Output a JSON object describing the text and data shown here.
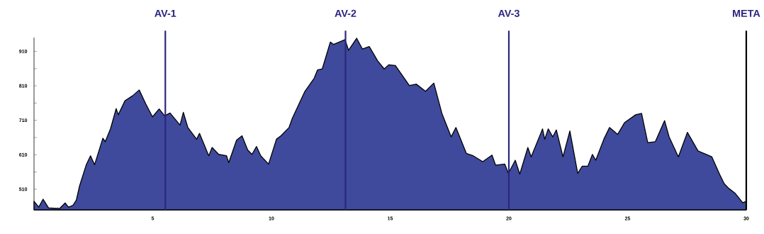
{
  "chart_data": {
    "type": "area",
    "color": "#3f4a9c",
    "x": [
      0,
      0.2,
      0.38,
      0.61,
      1.08,
      1.31,
      1.45,
      1.64,
      1.78,
      1.92,
      2.2,
      2.38,
      2.55,
      2.9,
      3.0,
      3.22,
      3.46,
      3.55,
      3.83,
      4.15,
      4.43,
      4.71,
      4.99,
      5.27,
      5.5,
      5.73,
      6.15,
      6.29,
      6.48,
      6.85,
      6.97,
      7.36,
      7.5,
      7.78,
      8.11,
      8.2,
      8.53,
      8.76,
      9.0,
      9.18,
      9.37,
      9.55,
      9.88,
      10.21,
      10.4,
      10.74,
      10.88,
      11.41,
      11.8,
      11.94,
      12.14,
      12.48,
      12.62,
      13.1,
      13.25,
      13.59,
      13.83,
      14.12,
      14.47,
      14.75,
      14.94,
      15.22,
      15.81,
      16.1,
      16.49,
      16.84,
      17.18,
      17.57,
      17.77,
      18.21,
      18.5,
      18.9,
      19.29,
      19.44,
      19.83,
      19.98,
      20.27,
      20.46,
      20.8,
      20.94,
      21.42,
      21.51,
      21.66,
      21.85,
      22.0,
      22.28,
      22.57,
      22.9,
      23.09,
      23.33,
      23.52,
      23.66,
      24.0,
      24.24,
      24.58,
      24.87,
      25.34,
      25.59,
      25.85,
      26.17,
      26.56,
      26.75,
      27.14,
      27.52,
      27.97,
      28.55,
      28.88,
      29.07,
      29.27,
      29.52,
      29.85,
      30
    ],
    "values": [
      475,
      458,
      481,
      456,
      454,
      470,
      458,
      463,
      478,
      520,
      581,
      607,
      581,
      658,
      648,
      685,
      744,
      726,
      767,
      781,
      798,
      757,
      720,
      743,
      723,
      731,
      696,
      733,
      689,
      655,
      672,
      607,
      631,
      611,
      607,
      587,
      652,
      665,
      624,
      611,
      634,
      607,
      583,
      655,
      665,
      689,
      716,
      794,
      832,
      856,
      859,
      937,
      930,
      944,
      913,
      948,
      917,
      924,
      883,
      859,
      871,
      869,
      811,
      815,
      794,
      818,
      730,
      662,
      689,
      614,
      607,
      590,
      609,
      580,
      583,
      556,
      594,
      554,
      631,
      604,
      685,
      655,
      685,
      662,
      682,
      604,
      679,
      556,
      577,
      577,
      611,
      594,
      655,
      689,
      669,
      703,
      726,
      730,
      645,
      648,
      709,
      662,
      604,
      675,
      621,
      604,
      553,
      526,
      512,
      499,
      471,
      475
    ],
    "xlim": [
      0,
      30
    ],
    "ylim": [
      450,
      950
    ],
    "xticks": [
      {
        "value": 1,
        "label": null
      },
      {
        "value": 2,
        "label": null
      },
      {
        "value": 3,
        "label": null
      },
      {
        "value": 4,
        "label": null
      },
      5,
      {
        "value": 6,
        "label": null
      },
      {
        "value": 7,
        "label": null
      },
      {
        "value": 8,
        "label": null
      },
      {
        "value": 9,
        "label": null
      },
      10,
      {
        "value": 11,
        "label": null
      },
      {
        "value": 12,
        "label": null
      },
      {
        "value": 13,
        "label": null
      },
      {
        "value": 14,
        "label": null
      },
      15,
      {
        "value": 16,
        "label": null
      },
      {
        "value": 17,
        "label": null
      },
      {
        "value": 18,
        "label": null
      },
      {
        "value": 19,
        "label": null
      },
      20,
      {
        "value": 21,
        "label": null
      },
      {
        "value": 22,
        "label": null
      },
      {
        "value": 23,
        "label": null
      },
      {
        "value": 24,
        "label": null
      },
      25,
      30
    ],
    "yticks": [
      {
        "value": 460,
        "label": null
      },
      510,
      {
        "value": 560,
        "label": null
      },
      610,
      {
        "value": 660,
        "label": null
      },
      710,
      {
        "value": 760,
        "label": null
      },
      810,
      {
        "value": 860,
        "label": null
      },
      910
    ],
    "ref_lines": [
      {
        "axis": "x",
        "value": 5.53,
        "label": "AV-1",
        "color": "#2b2680"
      },
      {
        "axis": "x",
        "value": 13.12,
        "label": "AV-2",
        "color": "#2b2680"
      },
      {
        "axis": "x",
        "value": 20,
        "label": "AV-3",
        "color": "#2b2680"
      },
      {
        "axis": "x",
        "value": 30,
        "label": "META",
        "color": "#000000"
      }
    ]
  }
}
